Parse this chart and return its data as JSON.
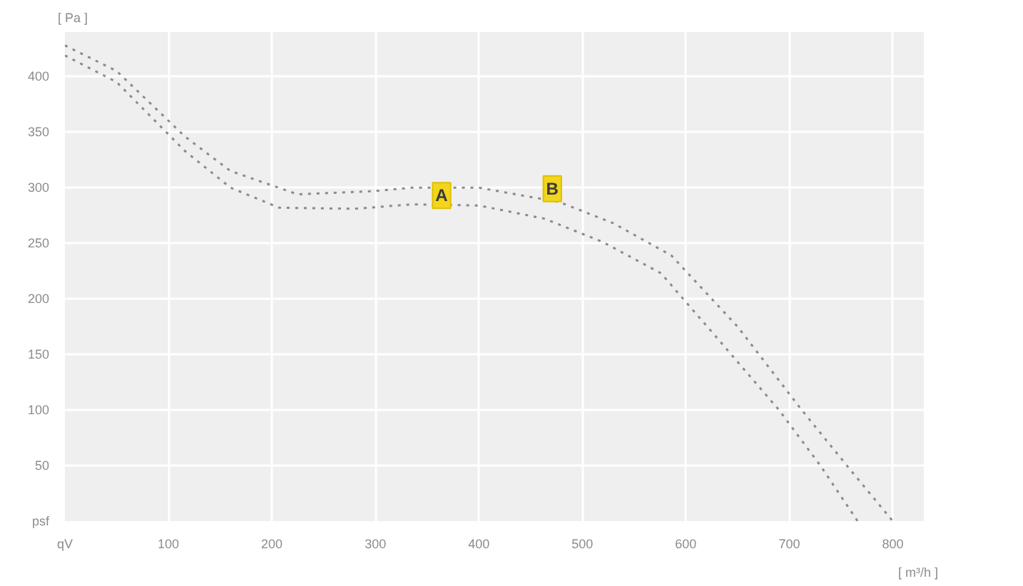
{
  "chart_data": {
    "type": "line",
    "xlabel": "[ m³/h ]",
    "ylabel": "[ Pa ]",
    "series": [
      {
        "color": "#8a8a8a",
        "x": [
          0,
          50,
          116,
          160,
          225,
          300,
          335,
          400,
          478,
          530,
          586,
          650,
          712,
          760,
          800
        ],
        "values": [
          428,
          405,
          346,
          315,
          294,
          297,
          300,
          300,
          287,
          268,
          239,
          175,
          100,
          45,
          0
        ]
      },
      {
        "color": "#8a8a8a",
        "x": [
          0,
          50,
          116,
          160,
          207,
          280,
          335,
          400,
          464,
          520,
          576,
          630,
          690,
          730,
          766
        ],
        "values": [
          419,
          395,
          333,
          300,
          282,
          281,
          285,
          284,
          272,
          251,
          223,
          165,
          100,
          50,
          0
        ]
      }
    ],
    "annotations": [
      {
        "text": "A",
        "x": 364,
        "y": 293
      },
      {
        "text": "B",
        "x": 471,
        "y": 299
      }
    ],
    "xlim": [
      0,
      830
    ],
    "ylim": [
      0,
      440
    ],
    "xticks": [
      {
        "value": 0,
        "label": "qV"
      },
      100,
      200,
      300,
      400,
      500,
      600,
      700,
      800
    ],
    "yticks": [
      {
        "value": 0,
        "label": "psf"
      },
      50,
      100,
      150,
      200,
      250,
      300,
      350,
      400
    ],
    "grid": true,
    "line_style": "dotted",
    "marker": "none"
  }
}
